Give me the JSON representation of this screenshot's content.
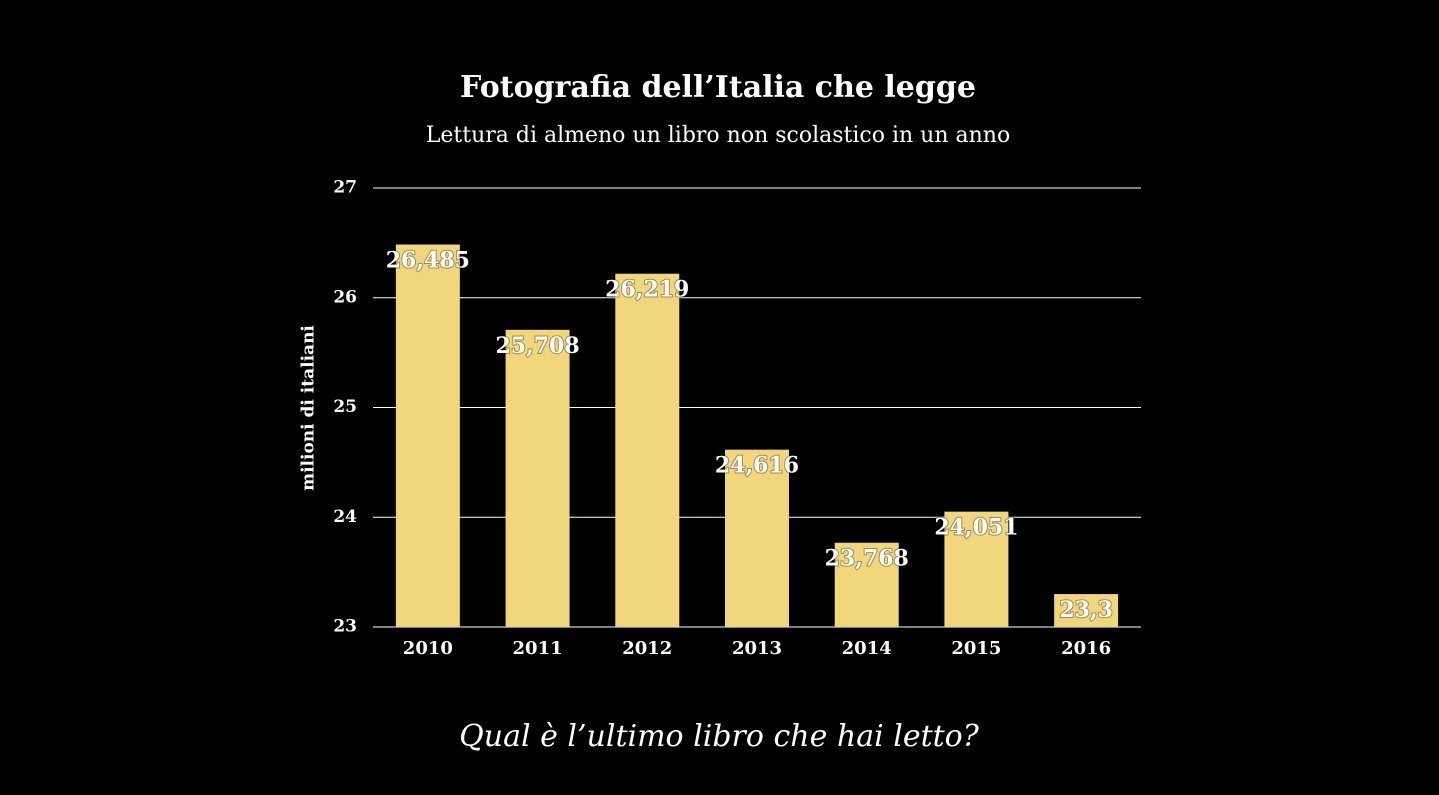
{
  "chart_data": {
    "type": "bar",
    "title": "Fotografia dell’Italia che legge",
    "subtitle": "Lettura di almeno un libro non scolastico in un anno",
    "y_label": "milioni di italiani",
    "categories": [
      "2010",
      "2011",
      "2012",
      "2013",
      "2014",
      "2015",
      "2016"
    ],
    "values": [
      26.485,
      25.708,
      26.219,
      24.616,
      23.768,
      24.051,
      23.3
    ],
    "value_labels": [
      "26,485",
      "25,708",
      "26,219",
      "24,616",
      "23,768",
      "24,051",
      "23,3"
    ],
    "color": "#f1d67c",
    "ylim": [
      23,
      27
    ],
    "yticks": [
      23,
      24,
      25,
      26,
      27
    ],
    "grid": true
  },
  "footer": {
    "question": "Qual è l’ultimo libro che hai letto?"
  }
}
